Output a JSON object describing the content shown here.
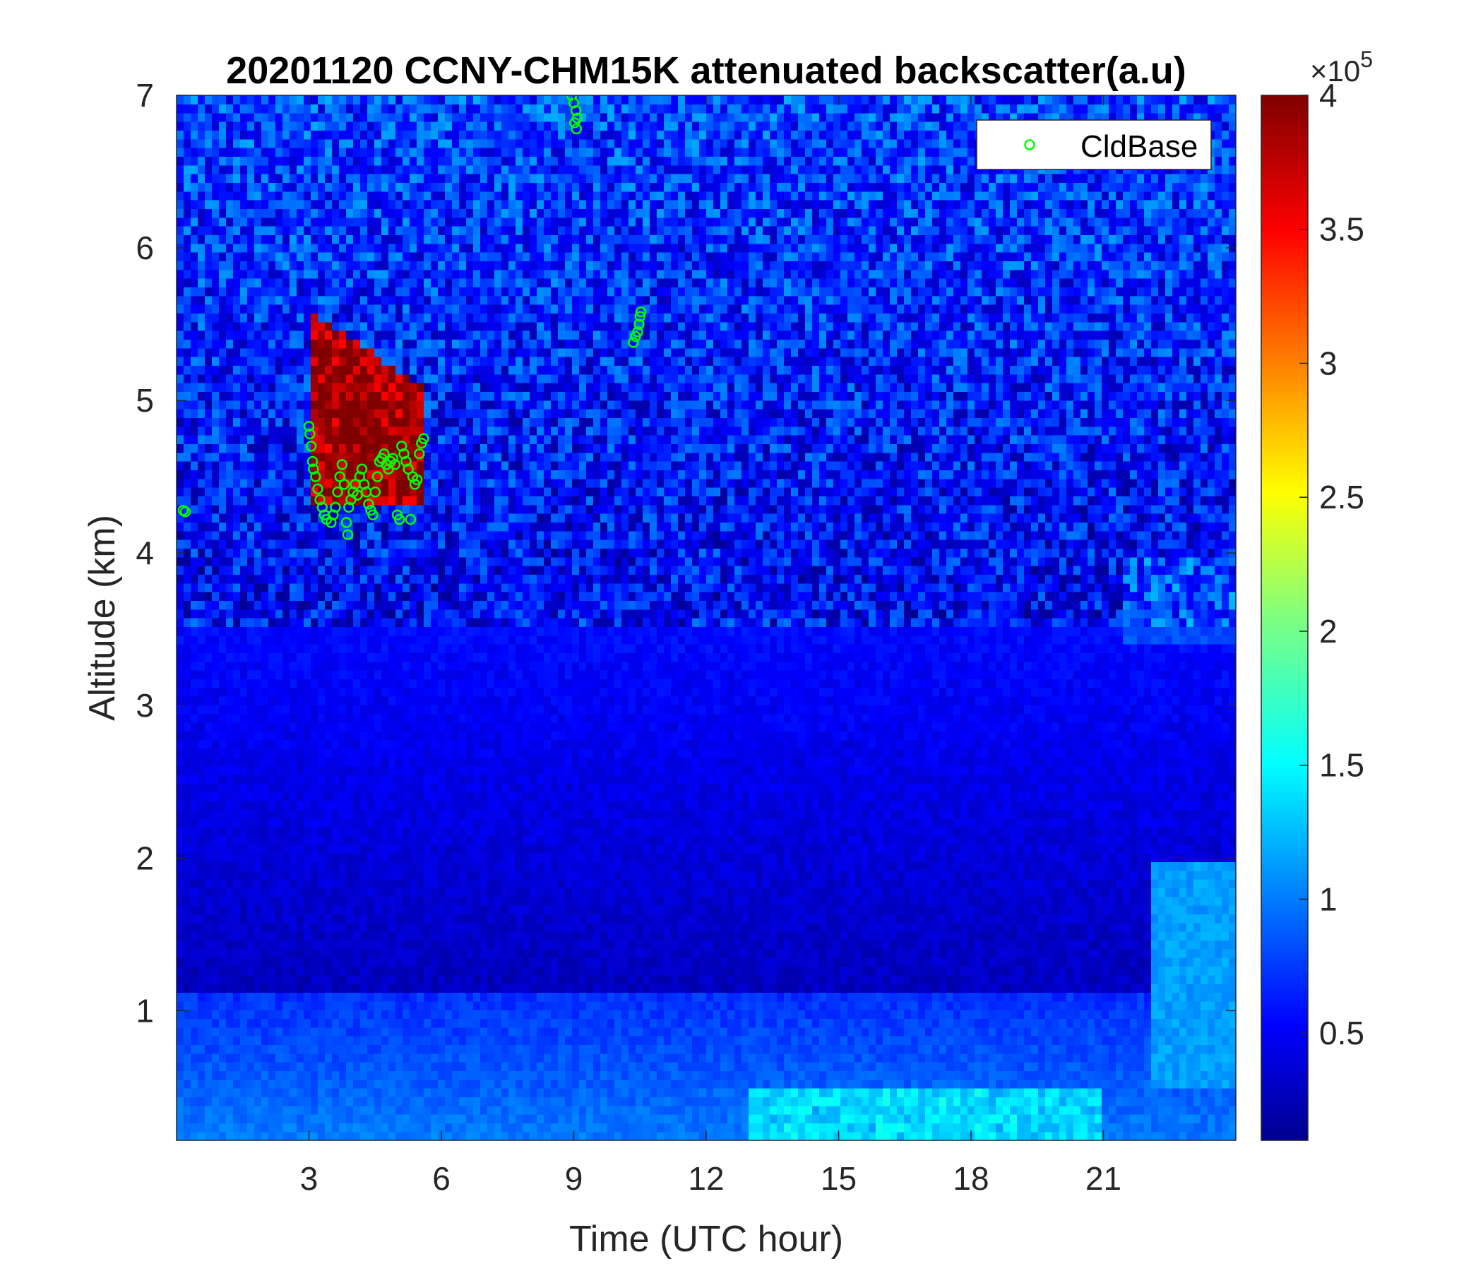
{
  "chart_data": {
    "type": "heatmap",
    "title": "20201120 CCNY-CHM15K attenuated backscatter(a.u)",
    "xlabel": "Time (UTC hour)",
    "ylabel": "Altitude (km)",
    "xlim": [
      0,
      24
    ],
    "ylim": [
      0.15,
      7
    ],
    "xticks": [
      "3",
      "6",
      "9",
      "12",
      "15",
      "18",
      "21"
    ],
    "xtick_values": [
      3,
      6,
      9,
      12,
      15,
      18,
      21
    ],
    "yticks": [
      "1",
      "2",
      "3",
      "4",
      "5",
      "6",
      "7"
    ],
    "ytick_values": [
      1,
      2,
      3,
      4,
      5,
      6,
      7
    ],
    "colorbar": {
      "colormap": "jet",
      "range": [
        0.1,
        4
      ],
      "ticks": [
        "0.5",
        "1",
        "1.5",
        "2",
        "2.5",
        "3",
        "3.5",
        "4"
      ],
      "tick_values": [
        0.5,
        1,
        1.5,
        2,
        2.5,
        3,
        3.5,
        4
      ],
      "exponent_label": "×10",
      "exponent": "5"
    },
    "legend": {
      "position": "top-right",
      "entries": [
        "CldBase"
      ]
    },
    "grid": false,
    "series": [
      {
        "name": "CldBase",
        "type": "scatter",
        "marker": "circle",
        "color": "#00ff00",
        "points": [
          [
            0.15,
            4.28
          ],
          [
            0.2,
            4.27
          ],
          [
            3.0,
            4.83
          ],
          [
            3.02,
            4.78
          ],
          [
            3.05,
            4.7
          ],
          [
            3.08,
            4.6
          ],
          [
            3.1,
            4.55
          ],
          [
            3.15,
            4.5
          ],
          [
            3.2,
            4.42
          ],
          [
            3.25,
            4.35
          ],
          [
            3.3,
            4.3
          ],
          [
            3.35,
            4.25
          ],
          [
            3.4,
            4.22
          ],
          [
            3.5,
            4.2
          ],
          [
            3.55,
            4.25
          ],
          [
            3.6,
            4.3
          ],
          [
            3.65,
            4.4
          ],
          [
            3.7,
            4.5
          ],
          [
            3.75,
            4.58
          ],
          [
            3.8,
            4.45
          ],
          [
            3.85,
            4.2
          ],
          [
            3.88,
            4.12
          ],
          [
            3.9,
            4.3
          ],
          [
            3.95,
            4.35
          ],
          [
            4.0,
            4.4
          ],
          [
            4.05,
            4.45
          ],
          [
            4.1,
            4.38
          ],
          [
            4.15,
            4.5
          ],
          [
            4.2,
            4.55
          ],
          [
            4.25,
            4.45
          ],
          [
            4.3,
            4.4
          ],
          [
            4.35,
            4.32
          ],
          [
            4.4,
            4.28
          ],
          [
            4.45,
            4.25
          ],
          [
            4.5,
            4.4
          ],
          [
            4.55,
            4.5
          ],
          [
            4.6,
            4.6
          ],
          [
            4.65,
            4.62
          ],
          [
            4.7,
            4.65
          ],
          [
            4.75,
            4.58
          ],
          [
            4.8,
            4.55
          ],
          [
            4.85,
            4.6
          ],
          [
            4.9,
            4.62
          ],
          [
            4.95,
            4.58
          ],
          [
            5.0,
            4.25
          ],
          [
            5.05,
            4.22
          ],
          [
            5.1,
            4.7
          ],
          [
            5.15,
            4.65
          ],
          [
            5.2,
            4.6
          ],
          [
            5.25,
            4.55
          ],
          [
            5.3,
            4.22
          ],
          [
            5.35,
            4.5
          ],
          [
            5.4,
            4.45
          ],
          [
            5.45,
            4.48
          ],
          [
            5.5,
            4.65
          ],
          [
            5.55,
            4.72
          ],
          [
            5.6,
            4.75
          ],
          [
            8.95,
            7.0
          ],
          [
            9.0,
            6.95
          ],
          [
            9.05,
            6.9
          ],
          [
            9.08,
            6.85
          ],
          [
            9.02,
            6.82
          ],
          [
            9.06,
            6.78
          ],
          [
            10.35,
            5.38
          ],
          [
            10.4,
            5.42
          ],
          [
            10.45,
            5.45
          ],
          [
            10.48,
            5.5
          ],
          [
            10.5,
            5.55
          ],
          [
            10.52,
            5.58
          ]
        ]
      }
    ]
  }
}
